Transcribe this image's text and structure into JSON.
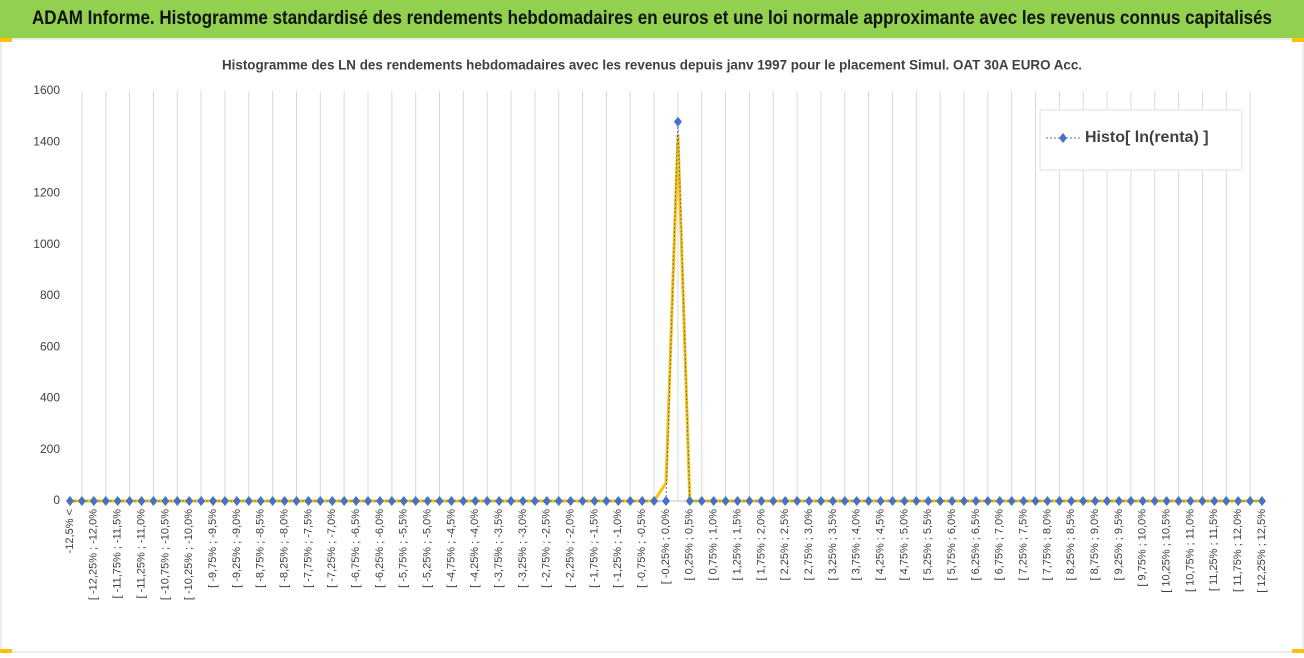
{
  "header": {
    "title": "ADAM Informe. Histogramme standardisé des rendements hebdomadaires en euros et une loi normale approximante avec les revenus connus capitalisés"
  },
  "chart_data": {
    "type": "line",
    "title": "Histogramme des LN des rendements hebdomadaires avec les revenus depuis janv 1997 pour le placement Simul. OAT 30A EURO Acc.",
    "categories": [
      "-12,5% <",
      null,
      "[ -12,25% ; -12,0%",
      null,
      "[ -11,75% ; -11,5%",
      null,
      "[ -11,25% ; -11,0%",
      null,
      "[ -10,75% ; -10,5%",
      null,
      "[ -10,25% ; -10,0%",
      null,
      "[ -9,75% ; -9,5%",
      null,
      "[ -9,25% ; -9,0%",
      null,
      "[ -8,75% ; -8,5%",
      null,
      "[ -8,25% ; -8,0%",
      null,
      "[ -7,75% ; -7,5%",
      null,
      "[ -7,25% ; -7,0%",
      null,
      "[ -6,75% ; -6,5%",
      null,
      "[ -6,25% ; -6,0%",
      null,
      "[ -5,75% ; -5,5%",
      null,
      "[ -5,25% ; -5,0%",
      null,
      "[ -4,75% ; -4,5%",
      null,
      "[ -4,25% ; -4,0%",
      null,
      "[ -3,75% ; -3,5%",
      null,
      "[ -3,25% ; -3,0%",
      null,
      "[ -2,75% ; -2,5%",
      null,
      "[ -2,25% ; -2,0%",
      null,
      "[ -1,75% ; -1,5%",
      null,
      "[ -1,25% ; -1,0%",
      null,
      "[ -0,75% ; -0,5%",
      null,
      "[ -0,25% ; 0,0%",
      null,
      "[ 0,25% ; 0,5%",
      null,
      "[ 0,75% ; 1,0%",
      null,
      "[ 1,25% ; 1,5%",
      null,
      "[ 1,75% ; 2,0%",
      null,
      "[ 2,25% ; 2,5%",
      null,
      "[ 2,75% ; 3,0%",
      null,
      "[ 3,25% ; 3,5%",
      null,
      "[ 3,75% ; 4,0%",
      null,
      "[ 4,25% ; 4,5%",
      null,
      "[ 4,75% ; 5,0%",
      null,
      "[ 5,25% ; 5,5%",
      null,
      "[ 5,75% ; 6,0%",
      null,
      "[ 6,25% ; 6,5%",
      null,
      "[ 6,75% ; 7,0%",
      null,
      "[ 7,25% ; 7,5%",
      null,
      "[ 7,75% ; 8,0%",
      null,
      "[ 8,25% ; 8,5%",
      null,
      "[ 8,75% ; 9,0%",
      null,
      "[ 9,25% ; 9,5%",
      null,
      "[ 9,75% ; 10,0%",
      null,
      "[ 10,25% ; 10,5%",
      null,
      "[ 10,75% ; 11,0%",
      null,
      "[ 11,25% ; 11,5%",
      null,
      "[ 11,75% ; 12,0%",
      null,
      "[ 12,25% ; 12,5%"
    ],
    "series": [
      {
        "color": "#ffc000",
        "values": [
          0,
          0,
          0,
          0,
          0,
          0,
          0,
          0,
          0,
          0,
          0,
          0,
          0,
          0,
          0,
          0,
          0,
          0,
          0,
          0,
          0,
          0,
          0,
          0,
          0,
          0,
          0,
          0,
          0,
          0,
          0,
          0,
          0,
          0,
          0,
          0,
          0,
          0,
          0,
          0,
          0,
          0,
          0,
          0,
          0,
          0,
          0,
          0,
          0,
          0,
          70,
          1430,
          0,
          0,
          0,
          0,
          0,
          0,
          0,
          0,
          0,
          0,
          0,
          0,
          0,
          0,
          0,
          0,
          0,
          0,
          0,
          0,
          0,
          0,
          0,
          0,
          0,
          0,
          0,
          0,
          0,
          0,
          0,
          0,
          0,
          0,
          0,
          0,
          0,
          0,
          0,
          0,
          0,
          0,
          0,
          0,
          0,
          0,
          0,
          0,
          0
        ]
      },
      {
        "name": "Histo[ ln(renta) ]",
        "color": "#4472c4",
        "values": [
          0,
          0,
          0,
          0,
          0,
          0,
          0,
          0,
          0,
          0,
          0,
          0,
          0,
          0,
          0,
          0,
          0,
          0,
          0,
          0,
          0,
          0,
          0,
          0,
          0,
          0,
          0,
          0,
          0,
          0,
          0,
          0,
          0,
          0,
          0,
          0,
          0,
          0,
          0,
          0,
          0,
          0,
          0,
          0,
          0,
          0,
          0,
          0,
          0,
          0,
          0,
          1480,
          0,
          0,
          0,
          0,
          0,
          0,
          0,
          0,
          0,
          0,
          0,
          0,
          0,
          0,
          0,
          0,
          0,
          0,
          0,
          0,
          0,
          0,
          0,
          0,
          0,
          0,
          0,
          0,
          0,
          0,
          0,
          0,
          0,
          0,
          0,
          0,
          0,
          0,
          0,
          0,
          0,
          0,
          0,
          0,
          0,
          0,
          0,
          0,
          0
        ]
      }
    ],
    "ylim": [
      0,
      1600
    ],
    "yticks": [
      0,
      200,
      400,
      600,
      800,
      1000,
      1200,
      1400,
      1600
    ],
    "grid": true,
    "legend": "upper right"
  }
}
